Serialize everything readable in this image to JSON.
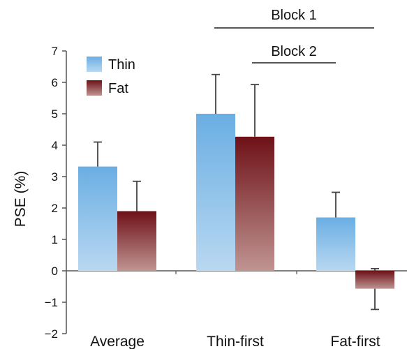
{
  "chart_data": {
    "type": "bar",
    "title": "",
    "xlabel": "",
    "ylabel": "PSE (%)",
    "ylim": [
      -2,
      7
    ],
    "yticks": [
      -2,
      -1,
      0,
      1,
      2,
      3,
      4,
      5,
      6,
      7
    ],
    "ytick_labels": [
      "−2",
      "−1",
      "0",
      "1",
      "2",
      "3",
      "4",
      "5",
      "6",
      "7"
    ],
    "categories": [
      "Average",
      "Thin-first",
      "Fat-first"
    ],
    "series": [
      {
        "name": "Thin",
        "values": [
          3.32,
          5.0,
          1.7
        ],
        "error_upper": [
          4.1,
          6.25,
          2.5
        ],
        "color_top": "#6aaee3",
        "color_bottom": "#b9d8f1"
      },
      {
        "name": "Fat",
        "values": [
          1.9,
          4.27,
          -0.57
        ],
        "error_upper": [
          2.85,
          5.93,
          0.07
        ],
        "error_lower": [
          null,
          null,
          -1.23
        ],
        "color_top": "#6e1117",
        "color_bottom": "#c09492"
      }
    ],
    "legend": {
      "position": "top-left",
      "entries": [
        "Thin",
        "Fat"
      ]
    },
    "annotations": [
      {
        "label": "Block 1",
        "from_category": "Thin-first",
        "to_category": "Fat-first"
      },
      {
        "label": "Block 2",
        "from_category": "Thin-first",
        "to_category": "Fat-first"
      }
    ],
    "grid": false
  }
}
